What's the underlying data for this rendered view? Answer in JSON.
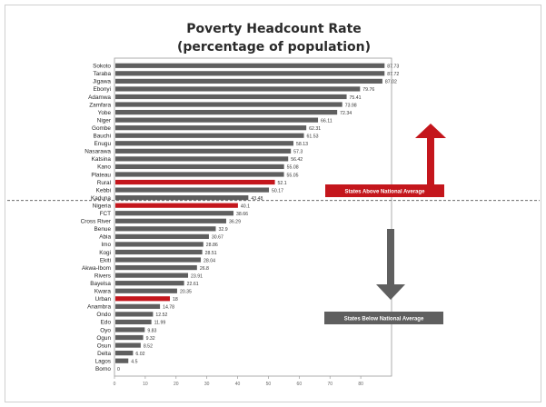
{
  "chart_data": {
    "type": "bar",
    "orientation": "horizontal",
    "title": "Poverty Headcount Rate",
    "subtitle": "(percentage of population)",
    "xlim": [
      0,
      90
    ],
    "x_ticks": [
      0,
      10,
      20,
      30,
      40,
      50,
      60,
      70,
      80
    ],
    "categories": [
      "Sokoto",
      "Taraba",
      "Jigawa",
      "Ebonyi",
      "Adamwa",
      "Zamfara",
      "Yobe",
      "Niger",
      "Gombe",
      "Bauchi",
      "Enugu",
      "Nasarawa",
      "Katsina",
      "Kano",
      "Plateau",
      "Rural",
      "Kebbi",
      "Kaduna",
      "Nigeria",
      "FCT",
      "Cross River",
      "Benue",
      "Abia",
      "Imo",
      "Kogi",
      "Ekiti",
      "Akwa-Ibom",
      "Rivers",
      "Bayelsa",
      "Kwara",
      "Urban",
      "Anambra",
      "Ondo",
      "Edo",
      "Oyo",
      "Ogun",
      "Osun",
      "Delta",
      "Lagos",
      "Borno"
    ],
    "values": [
      87.73,
      87.72,
      87.02,
      79.76,
      75.41,
      73.98,
      72.34,
      66.11,
      62.31,
      61.53,
      58.13,
      57.3,
      56.42,
      55.08,
      55.05,
      52.1,
      50.17,
      43.48,
      40.1,
      38.66,
      36.29,
      32.9,
      30.67,
      28.86,
      28.51,
      28.04,
      26.8,
      23.91,
      22.61,
      20.35,
      18.0,
      14.78,
      12.52,
      11.99,
      9.83,
      9.32,
      8.52,
      6.02,
      4.5,
      0
    ],
    "value_labels": [
      "87.73",
      "87.72",
      "87.02",
      "79.76",
      "75.41",
      "73.98",
      "72.34",
      "66.11",
      "62.31",
      "61.53",
      "58.13",
      "57.3",
      "56.42",
      "55.08",
      "55.05",
      "52.1",
      "50.17",
      "43.48",
      "40.1",
      "38.66",
      "36.29",
      "32.9",
      "30.67",
      "28.86",
      "28.51",
      "28.04",
      "26.8",
      "23.91",
      "22.61",
      "20.35",
      "18",
      "14.78",
      "12.52",
      "11.99",
      "9.83",
      "9.32",
      "8.52",
      "6.02",
      "4.5",
      "0"
    ],
    "highlighted": [
      "Rural",
      "Nigeria",
      "Urban"
    ],
    "bar_color": "#5f5f5f",
    "highlight_color": "#c4161c",
    "national_average_line": "dashed",
    "annotations": {
      "above": "States Above National Average",
      "below": "States Below National Average",
      "above_color": "#c4161c",
      "below_color": "#5f5f5f"
    }
  }
}
